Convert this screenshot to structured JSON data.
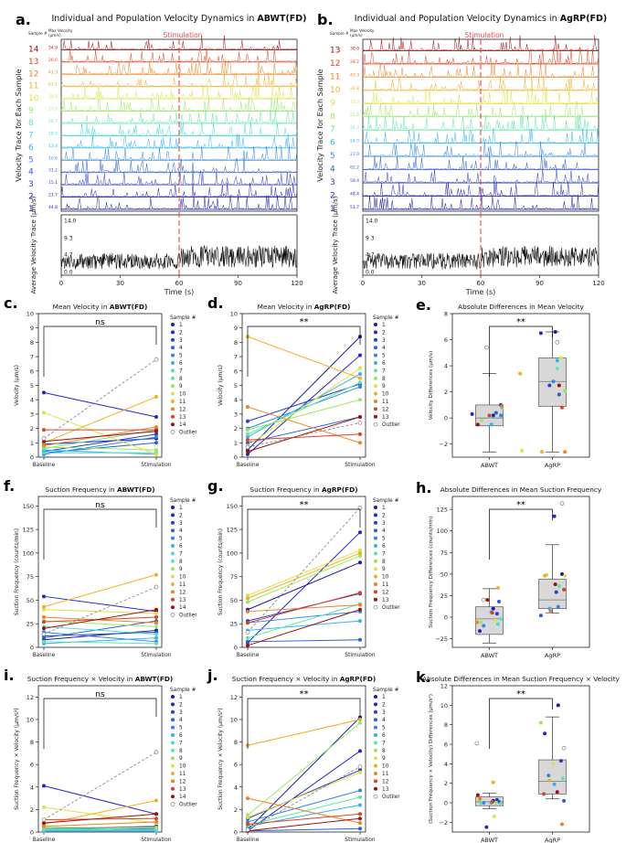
{
  "colors": {
    "samples": [
      "#1a1ab0",
      "#2424c8",
      "#2c3ec8",
      "#2a5ed8",
      "#2e86e8",
      "#30b4f0",
      "#40e0d8",
      "#5ae8a8",
      "#9ae860",
      "#e0e040",
      "#f0b020",
      "#f08020",
      "#e04020",
      "#a01010"
    ],
    "outlier": "#808080",
    "stim": "#e84a4a",
    "box": "#d8d8d8",
    "trace": "#111111"
  },
  "chart_data": [
    {
      "id": "a",
      "type": "line",
      "panel_label": "a.",
      "title_prefix": "Individual and Population Velocity Dynamics in ",
      "title_bold": "ABWT(FD)",
      "header_sample": "Sample #",
      "header_maxvel": "Max Velocity",
      "header_unit": "(μm/s)",
      "ylabel_top": "Velocity Trace for Each Sample",
      "ylabel_bottom": "Average Velocity Trace (μm/s)",
      "xlabel": "Time (s)",
      "xticks": [
        "0",
        "30",
        "60",
        "90",
        "120"
      ],
      "xlim": [
        0,
        120
      ],
      "stim_label": "Stimulation",
      "stim_time": 60,
      "samples": [
        "14",
        "13",
        "12",
        "11",
        "10",
        "9",
        "8",
        "7",
        "6",
        "5",
        "4",
        "3",
        "2",
        "1"
      ],
      "max_velocity": [
        "54.9",
        "26.0",
        "41.3",
        "61.1",
        "22.5",
        "17.5",
        "20.7",
        "18.5",
        "13.4",
        "10.6",
        "31.2",
        "15.1",
        "21.7",
        "44.8"
      ],
      "avg_yticks": [
        "14.0",
        "9.3",
        "4.7",
        "0.0"
      ],
      "avg_ylim": [
        0,
        14
      ]
    },
    {
      "id": "b",
      "type": "line",
      "panel_label": "b.",
      "title_prefix": "Individual and Population Velocity Dynamics in ",
      "title_bold": "AgRP(FD)",
      "header_sample": "Sample #",
      "header_maxvel": "Max Velocity",
      "header_unit": "(μm/s)",
      "ylabel_top": "Velocity Trace for Each Sample",
      "ylabel_bottom": "Average Velocity Trace (μm/s)",
      "xlabel": "Time (s)",
      "xticks": [
        "0",
        "30",
        "60",
        "90",
        "120"
      ],
      "xlim": [
        0,
        120
      ],
      "stim_label": "Stimulation",
      "stim_time": 60,
      "samples": [
        "13",
        "12",
        "11",
        "10",
        "9",
        "8",
        "7",
        "6",
        "5",
        "4",
        "3",
        "2",
        "1"
      ],
      "max_velocity": [
        "30.0",
        "28.2",
        "43.3",
        "24.8",
        "13.5",
        "21.6",
        "24.3",
        "24.0",
        "23.9",
        "62.2",
        "59.4",
        "48.4",
        "51.7"
      ],
      "avg_yticks": [
        "14.0",
        "9.3",
        "4.7",
        "0.0"
      ],
      "avg_ylim": [
        0,
        14
      ]
    },
    {
      "id": "c",
      "type": "line",
      "panel_label": "c.",
      "title_prefix": "Mean Velocity in ",
      "title_bold": "ABWT(FD)",
      "ylabel": "Velocity (μm/s)",
      "categories": [
        "Baseline",
        "Stimulation"
      ],
      "ylim": [
        0,
        10
      ],
      "yticks": [
        "0",
        "1",
        "2",
        "3",
        "4",
        "5",
        "6",
        "7",
        "8",
        "9",
        "10"
      ],
      "sig": "ns",
      "legend_title": "Sample #",
      "outlier_label": "Outlier",
      "legend_items": [
        "1",
        "2",
        "3",
        "4",
        "5",
        "6",
        "7",
        "8",
        "9",
        "10",
        "11",
        "12",
        "13",
        "14"
      ],
      "series": [
        [
          0.9,
          1.3
        ],
        [
          4.5,
          2.8
        ],
        [
          0.4,
          1.6
        ],
        [
          0.3,
          1.0
        ],
        [
          0.2,
          1.4
        ],
        [
          0.5,
          0.2
        ],
        [
          0.3,
          0.3
        ],
        [
          0.6,
          1.9
        ],
        [
          0.7,
          0.5
        ],
        [
          3.1,
          0.2
        ],
        [
          1.0,
          4.2
        ],
        [
          0.8,
          2.1
        ],
        [
          1.9,
          1.9
        ],
        [
          1.1,
          1.8
        ]
      ],
      "outlier": [
        1.3,
        6.8
      ]
    },
    {
      "id": "d",
      "type": "line",
      "panel_label": "d.",
      "title_prefix": "Mean Velocity in ",
      "title_bold": "AgRP(FD)",
      "ylabel": "Velocity (μm/s)",
      "categories": [
        "Baseline",
        "Stimulation"
      ],
      "ylim": [
        0,
        10
      ],
      "yticks": [
        "0",
        "1",
        "2",
        "3",
        "4",
        "5",
        "6",
        "7",
        "8",
        "9",
        "10"
      ],
      "sig": "**",
      "legend_title": "Sample #",
      "outlier_label": "Outlier",
      "legend_items": [
        "1",
        "2",
        "3",
        "4",
        "5",
        "6",
        "7",
        "8",
        "9",
        "10",
        "11",
        "12",
        "13"
      ],
      "series": [
        [
          0.5,
          8.4
        ],
        [
          0.2,
          7.1
        ],
        [
          2.5,
          5.1
        ],
        [
          1.0,
          2.8
        ],
        [
          2.0,
          4.9
        ],
        [
          1.4,
          5.8
        ],
        [
          1.6,
          5.2
        ],
        [
          1.9,
          4.0
        ],
        [
          0.8,
          6.2
        ],
        [
          8.4,
          5.5
        ],
        [
          3.5,
          1.0
        ],
        [
          1.2,
          1.6
        ],
        [
          0.4,
          2.8
        ]
      ],
      "outlier": [
        0.7,
        2.4
      ]
    },
    {
      "id": "e",
      "type": "box",
      "panel_label": "e.",
      "title": "Absolute Differences in Mean Velocity",
      "ylabel": "Velocity Differences (μm/s)",
      "categories": [
        "ABWT",
        "AgRP"
      ],
      "ylim": [
        -3,
        8
      ],
      "yticks": [
        "−2",
        "0",
        "2",
        "4",
        "6",
        "8"
      ],
      "sig": "**",
      "boxes": [
        {
          "q1": -0.6,
          "median": 0.0,
          "q3": 1.0,
          "whislo": -2.6,
          "whishi": 3.4
        },
        {
          "q1": 0.9,
          "median": 2.8,
          "q3": 4.6,
          "whislo": -2.6,
          "whishi": 6.6
        }
      ],
      "points": [
        [
          [
            0.2,
            0.4
          ],
          [
            0.3,
            -1.8
          ],
          [
            1.0,
            1.2
          ],
          [
            0.4,
            0.7
          ],
          [
            0.2,
            1.2
          ],
          [
            -0.5,
            0.2
          ],
          [
            0.1,
            0.1
          ],
          [
            0.8,
            1.3
          ],
          [
            -0.2,
            -0.8
          ],
          [
            -2.5,
            3.4
          ],
          [
            3.4,
            3.2
          ],
          [
            0.9,
            1.3
          ],
          [
            0.2,
            0.0
          ],
          [
            -0.5,
            -1.2
          ]
        ],
        [
          [
            6.6,
            0.3
          ],
          [
            6.5,
            -1.2
          ],
          [
            2.5,
            -0.3
          ],
          [
            1.8,
            0.7
          ],
          [
            2.8,
            0.1
          ],
          [
            4.4,
            0.5
          ],
          [
            3.8,
            0.5
          ],
          [
            2.1,
            1.3
          ],
          [
            4.6,
            0.9
          ],
          [
            -2.6,
            -1.1
          ],
          [
            -2.6,
            1.3
          ],
          [
            0.8,
            1.0
          ],
          [
            2.5,
            0.7
          ]
        ]
      ],
      "outliers": [
        [
          5.4,
          -0.3
        ],
        [
          5.8,
          0.5
        ]
      ]
    },
    {
      "id": "f",
      "type": "line",
      "panel_label": "f.",
      "title_prefix": "Suction Frequency in ",
      "title_bold": "ABWT(FD)",
      "ylabel": "Suction Frequency (counts/min)",
      "categories": [
        "Baseline",
        "Stimulation"
      ],
      "ylim": [
        0,
        160
      ],
      "yticks": [
        "0",
        "25",
        "50",
        "75",
        "100",
        "125",
        "150"
      ],
      "sig": "ns",
      "legend_title": "Sample #",
      "outlier_label": "Outlier",
      "legend_items": [
        "1",
        "2",
        "3",
        "4",
        "5",
        "6",
        "7",
        "8",
        "9",
        "10",
        "11",
        "12",
        "13",
        "14"
      ],
      "series": [
        [
          8,
          18
        ],
        [
          54,
          38
        ],
        [
          12,
          16
        ],
        [
          10,
          28
        ],
        [
          16,
          6
        ],
        [
          4,
          10
        ],
        [
          22,
          14
        ],
        [
          6,
          4
        ],
        [
          28,
          22
        ],
        [
          40,
          36
        ],
        [
          43,
          77
        ],
        [
          32,
          26
        ],
        [
          27,
          32
        ],
        [
          20,
          40
        ]
      ],
      "outlier": [
        14,
        64
      ]
    },
    {
      "id": "g",
      "type": "line",
      "panel_label": "g.",
      "title_prefix": "Suction Frequency in ",
      "title_bold": "AgRP(FD)",
      "ylabel": "Suction Frequency (counts/min)",
      "categories": [
        "Baseline",
        "Stimulation"
      ],
      "ylim": [
        0,
        160
      ],
      "yticks": [
        "0",
        "25",
        "50",
        "75",
        "100",
        "125",
        "150"
      ],
      "sig": "**",
      "legend_title": "Sample #",
      "outlier_label": "Outlier",
      "legend_items": [
        "1",
        "2",
        "3",
        "4",
        "5",
        "6",
        "7",
        "8",
        "9",
        "10",
        "11",
        "12",
        "13"
      ],
      "series": [
        [
          40,
          90
        ],
        [
          5,
          122
        ],
        [
          28,
          57
        ],
        [
          6,
          8
        ],
        [
          26,
          38
        ],
        [
          18,
          28
        ],
        [
          10,
          46
        ],
        [
          48,
          97
        ],
        [
          55,
          103
        ],
        [
          52,
          100
        ],
        [
          38,
          45
        ],
        [
          26,
          58
        ],
        [
          2,
          40
        ]
      ],
      "outlier": [
        16,
        148
      ]
    },
    {
      "id": "h",
      "type": "box",
      "panel_label": "h.",
      "title": "Absolute Differences in Mean Suction Frequency",
      "ylabel": "Suction Frequency Differences (counts/min)",
      "categories": [
        "ABWT",
        "AgRP"
      ],
      "ylim": [
        -35,
        140
      ],
      "yticks": [
        "−25",
        "0",
        "25",
        "50",
        "75",
        "100",
        "125"
      ],
      "sig": "**",
      "boxes": [
        {
          "q1": -20,
          "median": -2,
          "q3": 12,
          "whislo": -30,
          "whishi": 33
        },
        {
          "q1": 10,
          "median": 20,
          "q3": 44,
          "whislo": 5,
          "whishi": 84
        }
      ],
      "points": [
        [
          [
            10,
            0.4
          ],
          [
            -16,
            -1.0
          ],
          [
            4,
            0.8
          ],
          [
            18,
            1.0
          ],
          [
            -10,
            -0.6
          ],
          [
            6,
            0.2
          ],
          [
            -8,
            0.9
          ],
          [
            -2,
            1.2
          ],
          [
            -6,
            -0.9
          ],
          [
            -4,
            0.6
          ],
          [
            34,
            0.9
          ],
          [
            -6,
            -1.3
          ],
          [
            5,
            0.3
          ],
          [
            20,
            -0.2
          ]
        ],
        [
          [
            50,
            1.0
          ],
          [
            117,
            0.2
          ],
          [
            29,
            0.4
          ],
          [
            2,
            -1.2
          ],
          [
            12,
            0.6
          ],
          [
            10,
            -0.3
          ],
          [
            36,
            0.7
          ],
          [
            49,
            -0.6
          ],
          [
            48,
            1.3
          ],
          [
            48,
            -0.8
          ],
          [
            7,
            -0.2
          ],
          [
            32,
            1.2
          ],
          [
            38,
            0.3
          ]
        ],
        [],
        []
      ],
      "outliers": [
        [
          20,
          -0.6
        ],
        [
          132,
          1.0
        ]
      ]
    },
    {
      "id": "i",
      "type": "line",
      "panel_label": "i.",
      "title_prefix": "Suction Frequency × Velocity in ",
      "title_bold": "ABWT(FD)",
      "ylabel": "Suction Frequency × Velocity (μm/s²)",
      "categories": [
        "Baseline",
        "Stimulation"
      ],
      "ylim": [
        0,
        13
      ],
      "yticks": [
        "0",
        "2",
        "4",
        "6",
        "8",
        "10",
        "12"
      ],
      "sig": "ns",
      "legend_title": "Sample #",
      "outlier_label": "Outlier",
      "legend_items": [
        "1",
        "2",
        "3",
        "4",
        "5",
        "6",
        "7",
        "8",
        "9",
        "10",
        "11",
        "12",
        "13",
        "14"
      ],
      "series": [
        [
          0.3,
          0.5
        ],
        [
          4.1,
          1.6
        ],
        [
          0.2,
          0.5
        ],
        [
          0.2,
          0.3
        ],
        [
          0.1,
          0.1
        ],
        [
          0.1,
          0.1
        ],
        [
          0.2,
          0.2
        ],
        [
          0.3,
          0.2
        ],
        [
          0.4,
          0.4
        ],
        [
          2.2,
          0.8
        ],
        [
          0.7,
          2.8
        ],
        [
          0.5,
          0.9
        ],
        [
          1.1,
          1.2
        ],
        [
          0.8,
          1.6
        ]
      ],
      "outlier": [
        1.1,
        7.1
      ]
    },
    {
      "id": "j",
      "type": "line",
      "panel_label": "j.",
      "title_prefix": "Suction Frequency × Velocity in ",
      "title_bold": "AgRP(FD)",
      "ylabel": "Suction Frequency × Velocity (μm/s²)",
      "categories": [
        "Baseline",
        "Stimulation"
      ],
      "ylim": [
        0,
        13
      ],
      "yticks": [
        "0",
        "2",
        "4",
        "6",
        "8",
        "10",
        "12"
      ],
      "sig": "**",
      "legend_title": "Sample #",
      "outlier_label": "Outlier",
      "legend_items": [
        "1",
        "2",
        "3",
        "4",
        "5",
        "6",
        "7",
        "8",
        "9",
        "10",
        "11",
        "12",
        "13"
      ],
      "series": [
        [
          0.2,
          10.2
        ],
        [
          0.1,
          7.2
        ],
        [
          1.2,
          5.5
        ],
        [
          0.1,
          0.3
        ],
        [
          0.9,
          3.7
        ],
        [
          0.5,
          2.4
        ],
        [
          0.6,
          3.1
        ],
        [
          1.5,
          9.7
        ],
        [
          1.3,
          5.3
        ],
        [
          7.7,
          10.0
        ],
        [
          3.0,
          0.8
        ],
        [
          0.7,
          1.6
        ],
        [
          0.1,
          1.2
        ]
      ],
      "outlier": [
        0.2,
        5.8
      ]
    },
    {
      "id": "k",
      "type": "box",
      "panel_label": "k.",
      "title": "Absolute Differences in Mean Suction Frequency × Velocity",
      "ylabel": "(Suction Frequency × Velocity) Differences (μm/s²)",
      "categories": [
        "ABWT",
        "AgRP"
      ],
      "ylim": [
        -3,
        12
      ],
      "yticks": [
        "−2",
        "0",
        "2",
        "4",
        "6",
        "8",
        "10",
        "12"
      ],
      "sig": "**",
      "boxes": [
        {
          "q1": -0.3,
          "median": 0.1,
          "q3": 0.6,
          "whislo": -0.6,
          "whishi": 1.0
        },
        {
          "q1": 0.9,
          "median": 2.2,
          "q3": 4.4,
          "whislo": 0.4,
          "whishi": 8.8
        }
      ],
      "points": [
        [
          [
            0.2,
            0.4
          ],
          [
            -2.5,
            -0.3
          ],
          [
            0.3,
            0.8
          ],
          [
            0.1,
            1.0
          ],
          [
            0.0,
            -0.6
          ],
          [
            0.0,
            0.2
          ],
          [
            0.0,
            -0.9
          ],
          [
            -0.1,
            1.2
          ],
          [
            0.0,
            0.7
          ],
          [
            -1.4,
            0.5
          ],
          [
            2.1,
            0.4
          ],
          [
            0.4,
            -1.0
          ],
          [
            0.1,
            0.3
          ],
          [
            0.8,
            -1.2
          ]
        ],
        [
          [
            10.0,
            0.6
          ],
          [
            7.1,
            -0.8
          ],
          [
            4.3,
            0.9
          ],
          [
            0.2,
            1.2
          ],
          [
            2.8,
            -0.4
          ],
          [
            1.9,
            0.2
          ],
          [
            2.5,
            1.1
          ],
          [
            8.2,
            -1.2
          ],
          [
            4.0,
            0.1
          ],
          [
            2.3,
            -0.3
          ],
          [
            -2.2,
            1.0
          ],
          [
            0.9,
            -0.9
          ],
          [
            1.1,
            0.5
          ]
        ],
        [],
        []
      ],
      "outliers": [
        [
          6.1,
          -1.3
        ],
        [
          5.6,
          1.2
        ]
      ]
    }
  ]
}
